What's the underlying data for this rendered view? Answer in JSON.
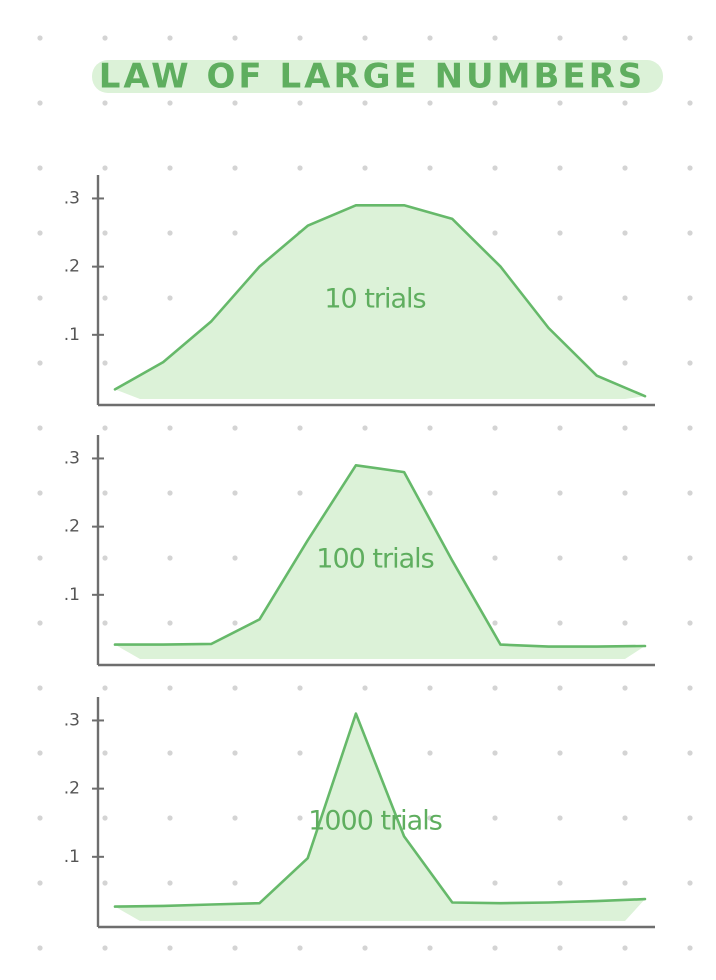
{
  "title": "LAW OF LARGE NUMBERS",
  "chart_data": [
    {
      "type": "area",
      "annotation": "10 trials",
      "color": "#66b96a",
      "fill": "#dcf2d8",
      "values": [
        0.02,
        0.06,
        0.12,
        0.2,
        0.26,
        0.29,
        0.29,
        0.27,
        0.2,
        0.11,
        0.04,
        0.01
      ],
      "ylim": [
        0,
        0.33
      ],
      "yticks": [
        {
          "value": 0.1,
          "label": ".1"
        },
        {
          "value": 0.2,
          "label": ".2"
        },
        {
          "value": 0.3,
          "label": ".3"
        }
      ]
    },
    {
      "type": "area",
      "annotation": "100 trials",
      "color": "#66b96a",
      "fill": "#dcf2d8",
      "values": [
        0.027,
        0.027,
        0.028,
        0.064,
        0.18,
        0.29,
        0.28,
        0.15,
        0.027,
        0.024,
        0.024,
        0.025
      ],
      "ylim": [
        0,
        0.33
      ],
      "yticks": [
        {
          "value": 0.1,
          "label": ".1"
        },
        {
          "value": 0.2,
          "label": ".2"
        },
        {
          "value": 0.3,
          "label": ".3"
        }
      ]
    },
    {
      "type": "area",
      "annotation": "1000 trials",
      "color": "#66b96a",
      "fill": "#dcf2d8",
      "values": [
        0.027,
        0.028,
        0.03,
        0.032,
        0.098,
        0.31,
        0.13,
        0.033,
        0.032,
        0.033,
        0.035,
        0.038
      ],
      "ylim": [
        0,
        0.33
      ],
      "yticks": [
        {
          "value": 0.1,
          "label": ".1"
        },
        {
          "value": 0.2,
          "label": ".2"
        },
        {
          "value": 0.3,
          "label": ".3"
        }
      ]
    }
  ]
}
